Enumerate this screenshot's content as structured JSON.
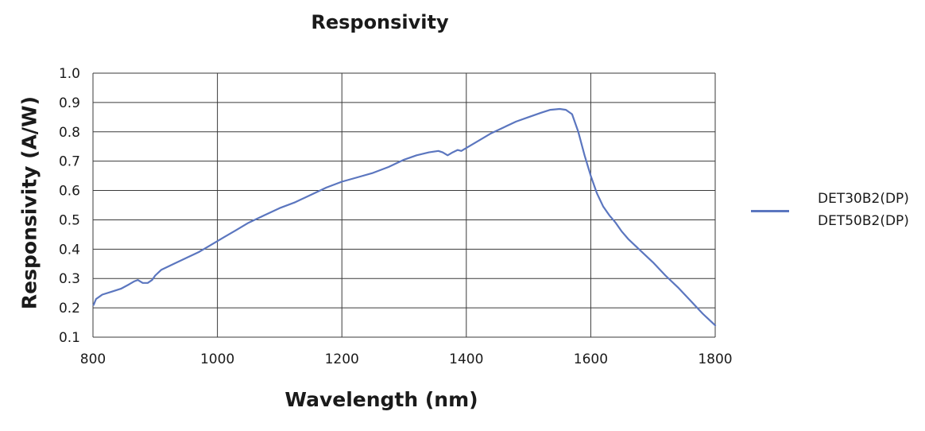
{
  "chart_data": {
    "type": "line",
    "title": "Responsivity",
    "xlabel": "Wavelength (nm)",
    "ylabel": "Responsivity (A/W)",
    "xlim": [
      800,
      1800
    ],
    "ylim": [
      0.1,
      1.0
    ],
    "xticks": [
      800,
      1000,
      1200,
      1400,
      1600,
      1800
    ],
    "xtick_labels": [
      "800",
      "1000",
      "1200",
      "1400",
      "1600",
      "1800"
    ],
    "yticks": [
      0.1,
      0.2,
      0.3,
      0.4,
      0.5,
      0.6,
      0.7,
      0.8,
      0.9,
      1.0
    ],
    "ytick_labels": [
      "0.1",
      "0.2",
      "0.3",
      "0.4",
      "0.5",
      "0.6",
      "0.7",
      "0.8",
      "0.9",
      "1.0"
    ],
    "grid": true,
    "legend_position": "right",
    "series": [
      {
        "name": "DET30B2(DP)\nDET50B2(DP)",
        "color": "#5b76bf",
        "x": [
          801,
          805,
          815,
          830,
          845,
          858,
          866,
          872,
          880,
          888,
          895,
          900,
          910,
          930,
          950,
          970,
          990,
          1010,
          1030,
          1050,
          1075,
          1100,
          1125,
          1150,
          1175,
          1200,
          1225,
          1250,
          1275,
          1300,
          1320,
          1340,
          1355,
          1362,
          1370,
          1378,
          1386,
          1392,
          1400,
          1420,
          1440,
          1460,
          1480,
          1500,
          1520,
          1535,
          1550,
          1560,
          1570,
          1580,
          1590,
          1600,
          1610,
          1620,
          1630,
          1640,
          1650,
          1660,
          1680,
          1700,
          1720,
          1740,
          1760,
          1780,
          1800
        ],
        "values": [
          0.21,
          0.23,
          0.245,
          0.255,
          0.265,
          0.28,
          0.29,
          0.295,
          0.285,
          0.285,
          0.295,
          0.31,
          0.33,
          0.35,
          0.37,
          0.39,
          0.415,
          0.44,
          0.465,
          0.49,
          0.515,
          0.54,
          0.56,
          0.585,
          0.61,
          0.63,
          0.645,
          0.66,
          0.68,
          0.705,
          0.72,
          0.73,
          0.735,
          0.73,
          0.72,
          0.73,
          0.738,
          0.735,
          0.745,
          0.77,
          0.795,
          0.815,
          0.835,
          0.85,
          0.865,
          0.875,
          0.878,
          0.875,
          0.86,
          0.8,
          0.72,
          0.65,
          0.59,
          0.545,
          0.515,
          0.49,
          0.46,
          0.435,
          0.395,
          0.355,
          0.31,
          0.27,
          0.225,
          0.18,
          0.14
        ]
      }
    ]
  },
  "legend": {
    "line1": "DET30B2(DP)",
    "line2": "DET50B2(DP)"
  }
}
